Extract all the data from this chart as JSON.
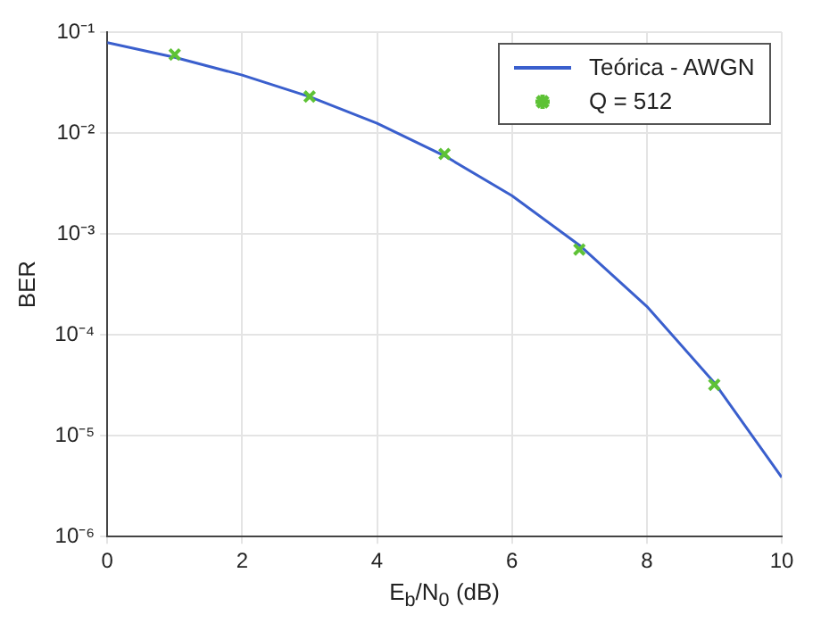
{
  "chart_data": {
    "type": "line",
    "xlabel": "E$_{b}$/N$_{0}$ (dB)",
    "ylabel": "BER",
    "x": [
      0,
      1,
      2,
      3,
      4,
      5,
      6,
      7,
      8,
      9,
      10
    ],
    "series": [
      {
        "name": "Teórica - AWGN",
        "type": "line",
        "color": "#3a5fcd",
        "marker": "none",
        "line_style": "solid",
        "values": [
          0.0786,
          0.0563,
          0.0375,
          0.0229,
          0.0125,
          0.00595,
          0.00239,
          0.000773,
          0.000191,
          3.36e-05,
          3.87e-06
        ]
      },
      {
        "name": "Q = 512",
        "type": "scatter",
        "color": "#5ec236",
        "marker": "cross",
        "x": [
          1,
          3,
          5,
          7,
          9
        ],
        "values": [
          0.06,
          0.023,
          0.0062,
          0.0007,
          3.2e-05
        ]
      }
    ],
    "xlim": [
      0,
      10
    ],
    "xticks": [
      0,
      2,
      4,
      6,
      8,
      10
    ],
    "ylim": [
      1e-06,
      0.1
    ],
    "yticks": [
      {
        "value": 1e-06,
        "label": "10⁻⁶"
      },
      {
        "value": 1e-05,
        "label": "10⁻⁵"
      },
      {
        "value": 0.0001,
        "label": "10⁻⁴"
      },
      {
        "value": 0.001,
        "label": "10⁻³"
      },
      {
        "value": 0.01,
        "label": "10⁻²"
      },
      {
        "value": 0.1,
        "label": "10⁻¹"
      }
    ],
    "log": "y",
    "grid": true,
    "legend": "top right"
  }
}
